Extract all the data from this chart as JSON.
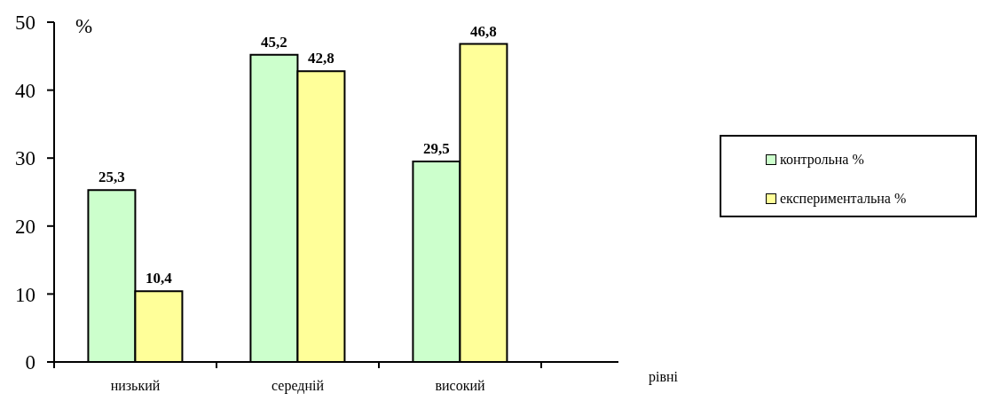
{
  "chart_data": {
    "type": "bar",
    "xlabel": "рівні",
    "ylabel": "%",
    "categories": [
      "низький",
      "середній",
      "високий"
    ],
    "series": [
      {
        "name": "контрольна %",
        "color": "#ccffcc",
        "values": [
          25.3,
          45.2,
          29.5
        ],
        "value_labels": [
          "25,3",
          "45,2",
          "29,5"
        ]
      },
      {
        "name": "експериментальна %",
        "color": "#ffff99",
        "values": [
          10.4,
          42.8,
          46.8
        ],
        "value_labels": [
          "10,4",
          "42,8",
          "46,8"
        ]
      }
    ],
    "ylim": [
      0,
      50
    ],
    "yticks": [
      0,
      10,
      20,
      30,
      40,
      50
    ],
    "grid": false,
    "legend": "right"
  }
}
